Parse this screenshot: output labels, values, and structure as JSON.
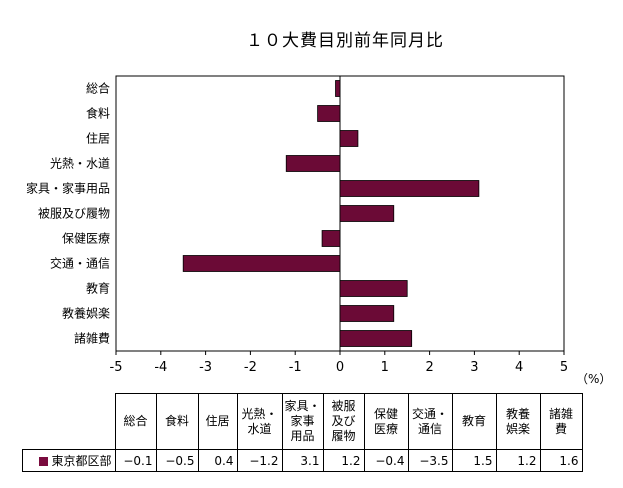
{
  "chart_data": {
    "type": "bar",
    "orientation": "horizontal",
    "title": "１０大費目別前年同月比",
    "unit": "（%）",
    "categories": [
      "総合",
      "食料",
      "住居",
      "光熱・水道",
      "家具・家事用品",
      "被服及び履物",
      "保健医療",
      "交通・通信",
      "教育",
      "教養娯楽",
      "諸雑費"
    ],
    "series": [
      {
        "name": "東京都区部",
        "values": [
          -0.1,
          -0.5,
          0.4,
          -1.2,
          3.1,
          1.2,
          -0.4,
          -3.5,
          1.5,
          1.2,
          1.6
        ],
        "color": "#6b0a36"
      }
    ],
    "xlim": [
      -5,
      5
    ],
    "xticks": [
      "-5",
      "-4",
      "-3",
      "-2",
      "-1",
      "0",
      "1",
      "2",
      "3",
      "4",
      "5"
    ],
    "grid": false,
    "legend": "table-below"
  },
  "table": {
    "headers": [
      "総合",
      "食料",
      "住居",
      "光熱・\n水道",
      "家具・\n家事\n用品",
      "被服\n及び\n履物",
      "保健\n医療",
      "交通・\n通信",
      "教育",
      "教養\n娯楽",
      "諸雑\n費"
    ],
    "row_label": "東京都区部",
    "values": [
      "−0.1",
      "−0.5",
      "0.4",
      "−1.2",
      "3.1",
      "1.2",
      "−0.4",
      "−3.5",
      "1.5",
      "1.2",
      "1.6"
    ]
  }
}
